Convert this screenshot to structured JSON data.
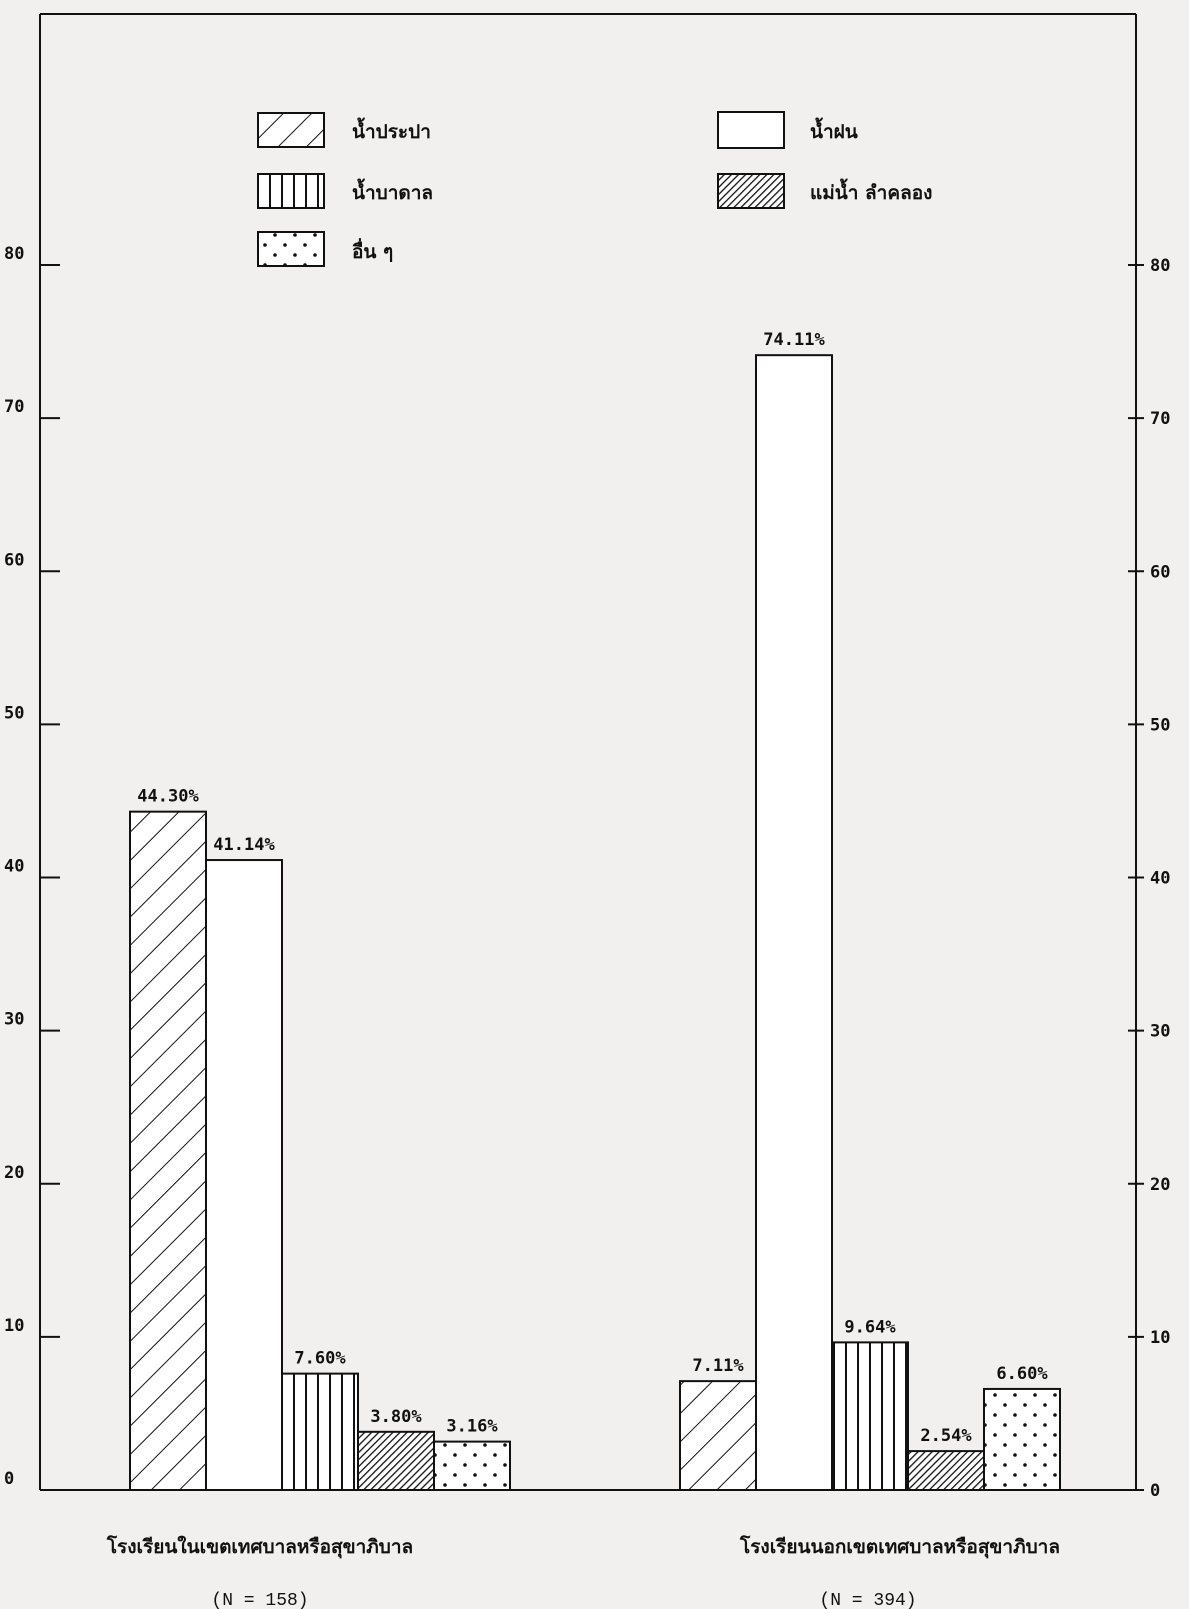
{
  "chart_data": {
    "type": "bar",
    "categories": [
      "โรงเรียนในเขตเทศบาลหรือสุขาภิบาล",
      "โรงเรียนนอกเขตเทศบาลหรือสุขาภิบาล"
    ],
    "category_n": [
      "(N = 158)",
      "(N = 394)"
    ],
    "series": [
      {
        "name": "น้ำประปา",
        "pattern": "diagonal-hatch",
        "values": [
          44.3,
          7.11
        ],
        "labels": [
          "44.30%",
          "7.11%"
        ]
      },
      {
        "name": "น้ำฝน",
        "pattern": "white",
        "values": [
          41.14,
          74.11
        ],
        "labels": [
          "41.14%",
          "74.11%"
        ]
      },
      {
        "name": "น้ำบาดาล",
        "pattern": "vertical-lines",
        "values": [
          7.6,
          9.64
        ],
        "labels": [
          "7.60%",
          "9.64%"
        ]
      },
      {
        "name": "แม่น้ำ ลำคลอง",
        "pattern": "dense-hatch",
        "values": [
          3.8,
          2.54
        ],
        "labels": [
          "3.80%",
          "2.54%"
        ]
      },
      {
        "name": "อื่น ๆ",
        "pattern": "dots",
        "values": [
          3.16,
          6.6
        ],
        "labels": [
          "3.16%",
          "6.60%"
        ]
      }
    ],
    "legend_order": [
      0,
      1,
      2,
      3,
      4
    ],
    "ylim": [
      0,
      80
    ],
    "yticks": [
      0,
      10,
      20,
      30,
      40,
      50,
      60,
      70,
      80
    ],
    "grid": false,
    "legend_position": "top"
  },
  "colors": {
    "ink": "#111111",
    "paper": "#f1f0ee"
  }
}
